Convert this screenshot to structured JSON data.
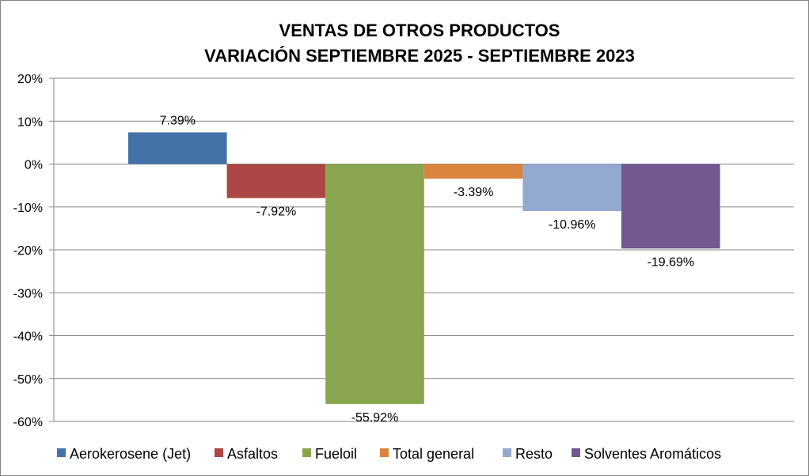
{
  "chart_data": {
    "type": "bar",
    "title": [
      "VENTAS DE OTROS PRODUCTOS",
      "VARIACIÓN SEPTIEMBRE 2025 - SEPTIEMBRE 2023"
    ],
    "xlabel": "",
    "ylabel": "",
    "ylim": [
      -60,
      20
    ],
    "yticks": [
      20,
      10,
      0,
      -10,
      -20,
      -30,
      -40,
      -50,
      -60
    ],
    "ytick_labels": [
      "20%",
      "10%",
      "0%",
      "-10%",
      "-20%",
      "-30%",
      "-40%",
      "-50%",
      "-60%"
    ],
    "grid": true,
    "legend_position": "bottom",
    "series": [
      {
        "name": "Aerokerosene (Jet)",
        "value": 7.39,
        "label": "7.39%",
        "color": "#4472A8"
      },
      {
        "name": "Asfaltos",
        "value": -7.92,
        "label": "-7.92%",
        "color": "#AA4643"
      },
      {
        "name": "Fueloil",
        "value": -55.92,
        "label": "-55.92%",
        "color": "#89A54E"
      },
      {
        "name": "Total general",
        "value": -3.39,
        "label": "-3.39%",
        "color": "#DB843D"
      },
      {
        "name": "Resto",
        "value": -10.96,
        "label": "-10.96%",
        "color": "#93A9CF"
      },
      {
        "name": "Solventes Aromáticos",
        "value": -19.69,
        "label": "-19.69%",
        "color": "#71588F"
      }
    ]
  }
}
